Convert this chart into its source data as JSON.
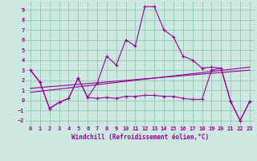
{
  "xlabel": "Windchill (Refroidissement éolien,°C)",
  "background_color": "#cce8e0",
  "grid_color": "#99ccbb",
  "line_color": "#990099",
  "xlim": [
    -0.5,
    23.5
  ],
  "ylim": [
    -2.5,
    9.8
  ],
  "yticks": [
    -2,
    -1,
    0,
    1,
    2,
    3,
    4,
    5,
    6,
    7,
    8,
    9
  ],
  "xticks": [
    0,
    1,
    2,
    3,
    4,
    5,
    6,
    7,
    8,
    9,
    10,
    11,
    12,
    13,
    14,
    15,
    16,
    17,
    18,
    19,
    20,
    21,
    22,
    23
  ],
  "line1_x": [
    0,
    1,
    2,
    3,
    4,
    5,
    6,
    7,
    8,
    9,
    10,
    11,
    12,
    13,
    14,
    15,
    16,
    17,
    18,
    19,
    20,
    21,
    22,
    23
  ],
  "line1_y": [
    3.0,
    1.8,
    -0.8,
    -0.2,
    0.2,
    2.2,
    0.3,
    1.7,
    4.4,
    3.5,
    6.0,
    5.4,
    9.3,
    9.3,
    7.0,
    6.3,
    4.4,
    4.0,
    3.2,
    3.3,
    3.2,
    -0.1,
    -2.0,
    -0.1
  ],
  "line2_x": [
    0,
    1,
    2,
    3,
    4,
    5,
    6,
    7,
    8,
    9,
    10,
    11,
    12,
    13,
    14,
    15,
    16,
    17,
    18,
    19,
    20,
    21,
    22,
    23
  ],
  "line2_y": [
    3.0,
    1.8,
    -0.8,
    -0.2,
    0.2,
    2.2,
    0.3,
    0.2,
    0.3,
    0.2,
    0.4,
    0.4,
    0.5,
    0.5,
    0.4,
    0.4,
    0.2,
    0.1,
    0.1,
    3.0,
    3.2,
    -0.1,
    -2.0,
    -0.1
  ],
  "line3_x": [
    0,
    23
  ],
  "line3_y": [
    0.8,
    3.3
  ],
  "line4_x": [
    0,
    23
  ],
  "line4_y": [
    1.2,
    3.0
  ]
}
